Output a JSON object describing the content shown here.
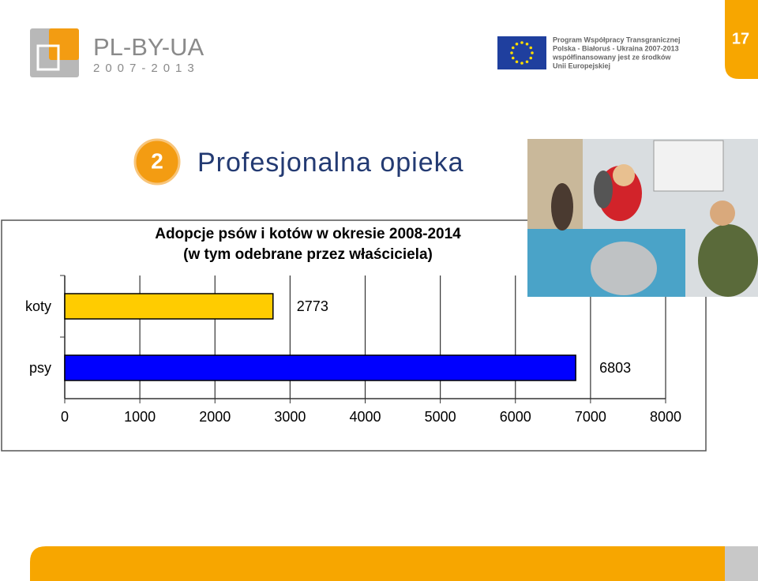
{
  "header": {
    "logo": "PL-BY-UA",
    "logo_years": "2007-2013",
    "program": [
      "Program Współpracy Transgranicznej",
      "Polska - Białoruś - Ukraina 2007-2013",
      "współfinansowany jest ze środków",
      "Unii Europejskiej"
    ]
  },
  "slide_number": "17",
  "section": {
    "number": "2",
    "title": "Profesjonalna opieka"
  },
  "chart_data": {
    "type": "barh",
    "title": [
      "Adopcje psów i kotów w okresie 2008-2014",
      "(w tym odebrane przez właściciela)"
    ],
    "categories": [
      "koty",
      "psy"
    ],
    "values": [
      2773,
      6803
    ],
    "colors": [
      "#ffcc00",
      "#0000ff"
    ],
    "xlim": [
      0,
      8000
    ],
    "xticks": [
      0,
      1000,
      2000,
      3000,
      4000,
      5000,
      6000,
      7000,
      8000
    ],
    "grid": true
  }
}
